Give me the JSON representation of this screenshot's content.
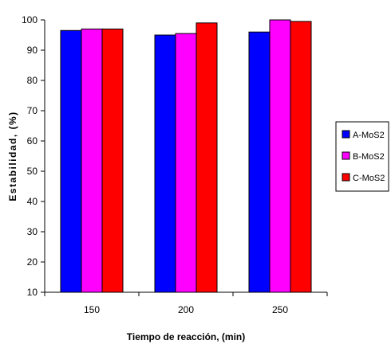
{
  "chart_data": {
    "type": "bar",
    "title": "",
    "xlabel": "Tiempo de reacción, (min)",
    "ylabel": "Estabilidad, (%)",
    "categories": [
      "150",
      "200",
      "250"
    ],
    "ylim": [
      10,
      100
    ],
    "yticks": [
      10,
      20,
      30,
      40,
      50,
      60,
      70,
      80,
      90,
      100
    ],
    "grid": false,
    "legend_position": "right",
    "series": [
      {
        "name": "A-MoS2",
        "color": "#0000ff",
        "values": [
          96.5,
          95.0,
          96.0
        ]
      },
      {
        "name": "B-MoS2",
        "color": "#ff00ff",
        "values": [
          97.0,
          95.5,
          100.0
        ]
      },
      {
        "name": "C-MoS2",
        "color": "#ff0000",
        "values": [
          97.0,
          99.0,
          99.5
        ]
      }
    ]
  }
}
